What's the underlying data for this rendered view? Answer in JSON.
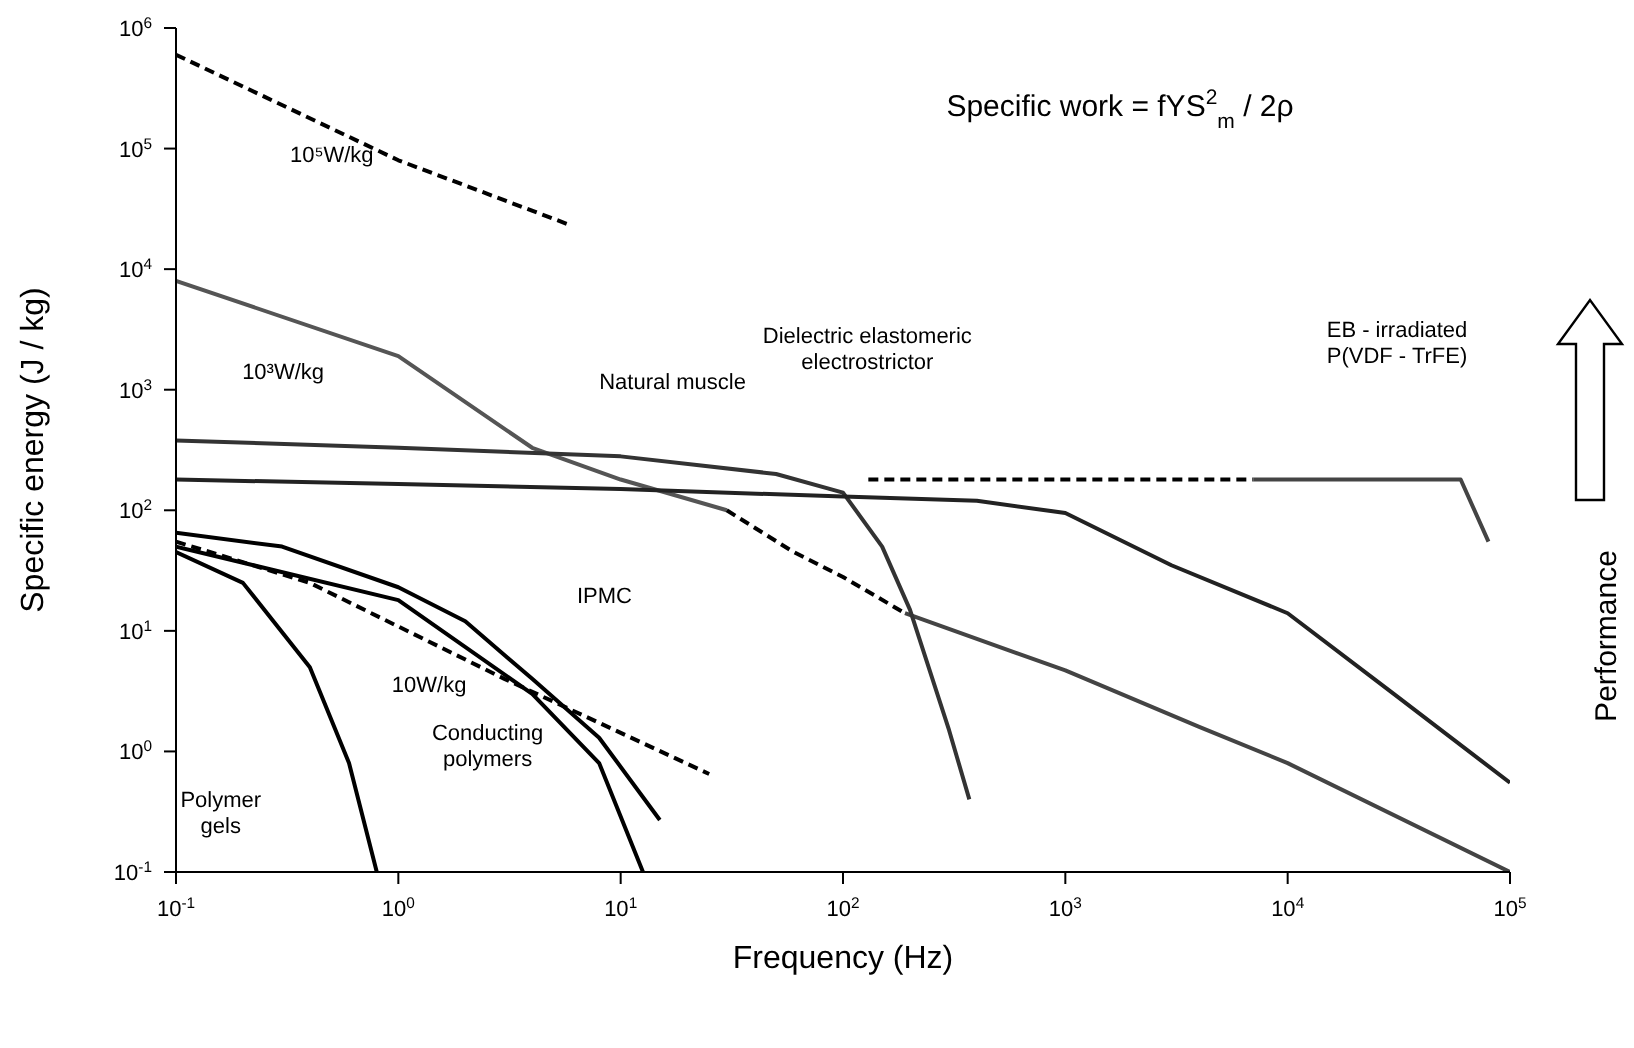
{
  "chart_data": {
    "type": "line",
    "xlabel": "Frequency  (Hz)",
    "ylabel": "Specific energy  (J / kg)",
    "log": "xy",
    "grid": false,
    "marker": "none",
    "xlim": [
      0.1,
      100000
    ],
    "ylim": [
      0.1,
      1000000
    ],
    "xticks": [
      {
        "value": 0.1,
        "label": "10$^{-1}$"
      },
      {
        "value": 1,
        "label": "10$^{0}$"
      },
      {
        "value": 10,
        "label": "10$^{1}$"
      },
      {
        "value": 100,
        "label": "10$^{2}$"
      },
      {
        "value": 1000,
        "label": "10$^{3}$"
      },
      {
        "value": 10000,
        "label": "10$^{4}$"
      },
      {
        "value": 100000,
        "label": "10$^{5}$"
      }
    ],
    "yticks": [
      {
        "value": 0.1,
        "label": "10$^{-1}$"
      },
      {
        "value": 1,
        "label": "10$^{0}$"
      },
      {
        "value": 10,
        "label": "10$^{1}$"
      },
      {
        "value": 100,
        "label": "10$^{2}$"
      },
      {
        "value": 1000,
        "label": "10$^{3}$"
      },
      {
        "value": 10000,
        "label": "10$^{4}$"
      },
      {
        "value": 100000,
        "label": "10$^{5}$"
      },
      {
        "value": 1000000,
        "label": "10$^{6}$"
      }
    ],
    "annotations": [
      "Specific work = fYS$^{2}$$_{m}$ / 2ρ",
      "Performance",
      "10⁵W/kg",
      "10³W/kg",
      "10W/kg",
      "Natural muscle",
      "Dielectric elastomeric\nelectrostrictor",
      "EB - irradiated\nP(VDF - TrFE)",
      "IPMC",
      "Conducting\npolymers",
      "Polymer\ngels"
    ],
    "series": [
      {
        "color": "#000000",
        "line_style": "dashed",
        "x": [
          0.1,
          1,
          6
        ],
        "values": [
          600000,
          80000,
          23000
        ]
      },
      {
        "color": "#555555",
        "line_style": "solid",
        "x": [
          0.1,
          1,
          4,
          10,
          30
        ],
        "values": [
          8000,
          1900,
          330,
          180,
          100
        ]
      },
      {
        "color": "#000000",
        "line_style": "dashed",
        "x": [
          30,
          60,
          100,
          190
        ],
        "values": [
          100,
          45,
          28,
          14
        ]
      },
      {
        "color": "#444444",
        "line_style": "solid",
        "x": [
          190,
          1000,
          4000,
          10000,
          100000
        ],
        "values": [
          14,
          4.7,
          1.6,
          0.8,
          0.1
        ]
      },
      {
        "color": "#333333",
        "line_style": "solid",
        "x": [
          0.1,
          1,
          10,
          50,
          100,
          150,
          200,
          300,
          370
        ],
        "values": [
          380,
          330,
          280,
          200,
          140,
          50,
          15,
          1.5,
          0.4
        ]
      },
      {
        "color": "#222222",
        "line_style": "solid",
        "x": [
          0.1,
          1,
          10,
          100,
          400,
          1000,
          3000,
          10000,
          30000,
          100000
        ],
        "values": [
          180,
          165,
          150,
          130,
          120,
          95,
          35,
          14,
          3,
          0.55
        ]
      },
      {
        "color": "#000000",
        "line_style": "dashed",
        "x": [
          130,
          7000
        ],
        "values": [
          180,
          180
        ]
      },
      {
        "color": "#444444",
        "line_style": "solid",
        "x": [
          7000,
          60000,
          80000
        ],
        "values": [
          180,
          180,
          55
        ]
      },
      {
        "color": "#000000",
        "line_style": "solid",
        "x": [
          0.1,
          0.3,
          1,
          2,
          4,
          8,
          15
        ],
        "values": [
          65,
          50,
          23,
          12,
          4,
          1.3,
          0.27
        ]
      },
      {
        "color": "#000000",
        "line_style": "solid",
        "x": [
          0.1,
          1,
          4,
          8,
          12.6
        ],
        "values": [
          50,
          18,
          3,
          0.8,
          0.1
        ]
      },
      {
        "color": "#000000",
        "line_style": "solid",
        "x": [
          0.1,
          0.2,
          0.4,
          0.6,
          0.8
        ],
        "values": [
          45,
          25,
          5,
          0.8,
          0.1
        ]
      },
      {
        "color": "#000000",
        "line_style": "dashed",
        "x": [
          0.1,
          0.4,
          3,
          25
        ],
        "values": [
          55,
          25,
          4,
          0.65
        ]
      }
    ]
  }
}
